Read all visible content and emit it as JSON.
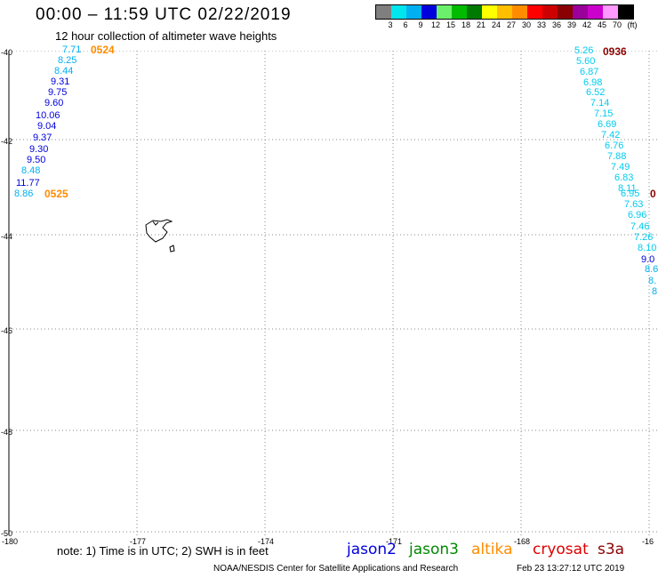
{
  "title": "00:00 – 11:59 UTC 02/22/2019",
  "subtitle": "12 hour collection of altimeter wave heights",
  "legend": {
    "colors": [
      "#7f7f7f",
      "#00e5ee",
      "#00b0f0",
      "#0000dd",
      "#6cf06c",
      "#00bb00",
      "#007a00",
      "#ffff00",
      "#ffbf00",
      "#ff8c00",
      "#ff0000",
      "#cc0000",
      "#8b0000",
      "#9b009b",
      "#cc00cc",
      "#ff99ff",
      "#000000"
    ],
    "ticks": [
      "3",
      "6",
      "9",
      "12",
      "15",
      "18",
      "21",
      "24",
      "27",
      "30",
      "33",
      "36",
      "39",
      "42",
      "45",
      "70",
      "(ft)"
    ]
  },
  "axes": {
    "x": [
      "-180",
      "-177",
      "-174",
      "-171",
      "-168",
      "-16"
    ],
    "y": [
      "-40",
      "-42",
      "-44",
      "-46",
      "-48",
      "-50"
    ]
  },
  "tracks": [
    {
      "time": "0524",
      "time_color": "#ff8c00",
      "end_time": "0525",
      "end_color": "#ff8c00",
      "values": [
        "7.71",
        "8.25",
        "8.44",
        "9.31",
        "9.75",
        "9.60",
        "10.06",
        "9.04",
        "9.37",
        "9.30",
        "9.50",
        "8.48",
        "11.77",
        "8.86"
      ],
      "colors": [
        "#00b0f0",
        "#00b0f0",
        "#00b0f0",
        "#0000dd",
        "#0000dd",
        "#0000dd",
        "#0000dd",
        "#0000dd",
        "#0000dd",
        "#0000dd",
        "#0000dd",
        "#00b0f0",
        "#0000dd",
        "#00b0f0"
      ]
    },
    {
      "time": "0936",
      "time_color": "#8b0000",
      "values": [
        "5.26",
        "5.60",
        "6.87",
        "6.98",
        "6.52",
        "7.14",
        "7.15",
        "6.69",
        "7.42",
        "6.76",
        "7.88",
        "7.49",
        "6.83",
        "8.11",
        "6.95",
        "7.63",
        "6.96",
        "7.46",
        "7.26",
        "8.10",
        "9.0",
        "8.6",
        "8.",
        "8"
      ],
      "colors": [
        "#00ccee",
        "#00ccee",
        "#00ccee",
        "#00ccee",
        "#00ccee",
        "#00ccee",
        "#00ccee",
        "#00ccee",
        "#00ccee",
        "#00ccee",
        "#00ccee",
        "#00ccee",
        "#00ccee",
        "#00ccee",
        "#00ccee",
        "#00ccee",
        "#00ccee",
        "#00ccee",
        "#00ccee",
        "#00ccee",
        "#0000dd",
        "#00b0f0",
        "#00b0f0",
        "#00b0f0"
      ],
      "edge_label": "0",
      "edge_color": "#8b0000"
    }
  ],
  "note": "note: 1) Time is in UTC; 2) SWH is in feet",
  "satellites": [
    {
      "name": "jason2",
      "color": "#0000dd"
    },
    {
      "name": "jason3",
      "color": "#008800"
    },
    {
      "name": "altika",
      "color": "#ff8c00"
    },
    {
      "name": "cryosat",
      "color": "#dd0000"
    },
    {
      "name": "s3a",
      "color": "#8b0000"
    }
  ],
  "credit": "NOAA/NESDIS Center for Satellite Applications and Research",
  "timestamp": "Feb 23 13:27:12 UTC 2019"
}
